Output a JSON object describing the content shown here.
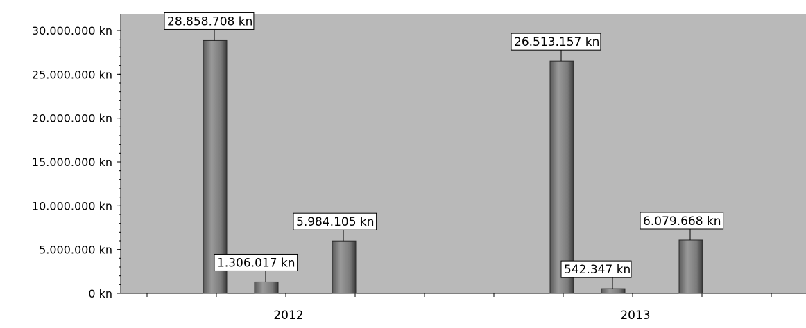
{
  "chart_data": {
    "type": "bar",
    "categories": [
      "2012",
      "2013"
    ],
    "series": [
      {
        "values": [
          28858708,
          26513157
        ],
        "data_labels": [
          "28.858.708 kn",
          "26.513.157 kn"
        ]
      },
      {
        "values": [
          1306017,
          542347
        ],
        "data_labels": [
          "1.306.017 kn",
          "542.347 kn"
        ]
      },
      {
        "values": [
          5984105,
          6079668
        ],
        "data_labels": [
          "5.984.105 kn",
          "6.079.668 kn"
        ]
      }
    ],
    "ylim": [
      0,
      30000000
    ],
    "yticks": [
      0,
      5000000,
      10000000,
      15000000,
      20000000,
      25000000,
      30000000
    ],
    "ytick_labels": [
      "0 kn",
      "5.000.000 kn",
      "10.000.000 kn",
      "15.000.000 kn",
      "20.000.000 kn",
      "25.000.000 kn",
      "30.000.000 kn"
    ],
    "title": "",
    "xlabel": "",
    "ylabel": "",
    "grid": false,
    "legend": "none",
    "colors": {
      "plot_bg": "#b9b9b9",
      "bar_fill": "#808080",
      "bar_dark": "#404040",
      "axis": "#000000",
      "label_bg": "#ffffff"
    }
  }
}
